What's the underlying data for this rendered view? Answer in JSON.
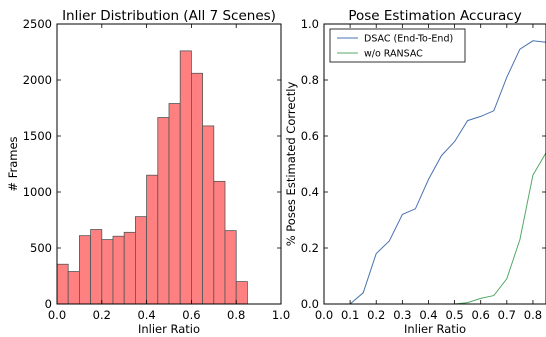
{
  "chart_data": [
    {
      "type": "bar",
      "title": "Inlier Distribution (All 7 Scenes)",
      "xlabel": "Inlier Ratio",
      "ylabel": "# Frames",
      "xlim": [
        0.0,
        1.0
      ],
      "ylim": [
        0,
        2500
      ],
      "xticks": [
        "0.0",
        "0.2",
        "0.4",
        "0.6",
        "0.8",
        "1.0"
      ],
      "yticks": [
        "0",
        "500",
        "1000",
        "1500",
        "2000",
        "2500"
      ],
      "bin_width": 0.05,
      "bins": [
        0.0,
        0.05,
        0.1,
        0.15,
        0.2,
        0.25,
        0.3,
        0.35,
        0.4,
        0.45,
        0.5,
        0.55,
        0.6,
        0.65,
        0.7,
        0.75,
        0.8
      ],
      "values": [
        355,
        290,
        610,
        665,
        575,
        605,
        640,
        780,
        1150,
        1665,
        1790,
        2260,
        2060,
        1590,
        1095,
        655,
        200
      ],
      "bar_color": "#ff8080",
      "grid": false
    },
    {
      "type": "line",
      "title": "Pose Estimation Accuracy",
      "xlabel": "Inlier Ratio",
      "ylabel": "% Poses Estimated Correctly",
      "xlim": [
        0.0,
        0.85
      ],
      "ylim": [
        0.0,
        1.0
      ],
      "xticks": [
        "0.0",
        "0.1",
        "0.2",
        "0.3",
        "0.4",
        "0.5",
        "0.6",
        "0.7",
        "0.8"
      ],
      "yticks": [
        "0.0",
        "0.2",
        "0.4",
        "0.6",
        "0.8",
        "1.0"
      ],
      "legend_position": "top-left",
      "grid": false,
      "x": [
        0.0,
        0.05,
        0.1,
        0.15,
        0.2,
        0.25,
        0.3,
        0.35,
        0.4,
        0.45,
        0.5,
        0.55,
        0.6,
        0.65,
        0.7,
        0.75,
        0.8,
        0.85
      ],
      "series": [
        {
          "name": "DSAC (End-To-End)",
          "color": "#4a72b0",
          "values": [
            0.0,
            0.0,
            0.0,
            0.04,
            0.18,
            0.225,
            0.32,
            0.34,
            0.445,
            0.53,
            0.58,
            0.655,
            0.67,
            0.69,
            0.81,
            0.91,
            0.94,
            0.935
          ]
        },
        {
          "name": "w/o RANSAC",
          "color": "#55a868",
          "values": [
            0.0,
            0.0,
            0.0,
            0.0,
            0.0,
            0.0,
            0.0,
            0.0,
            0.0,
            0.0,
            0.0,
            0.005,
            0.02,
            0.03,
            0.09,
            0.23,
            0.46,
            0.54
          ]
        }
      ]
    }
  ]
}
